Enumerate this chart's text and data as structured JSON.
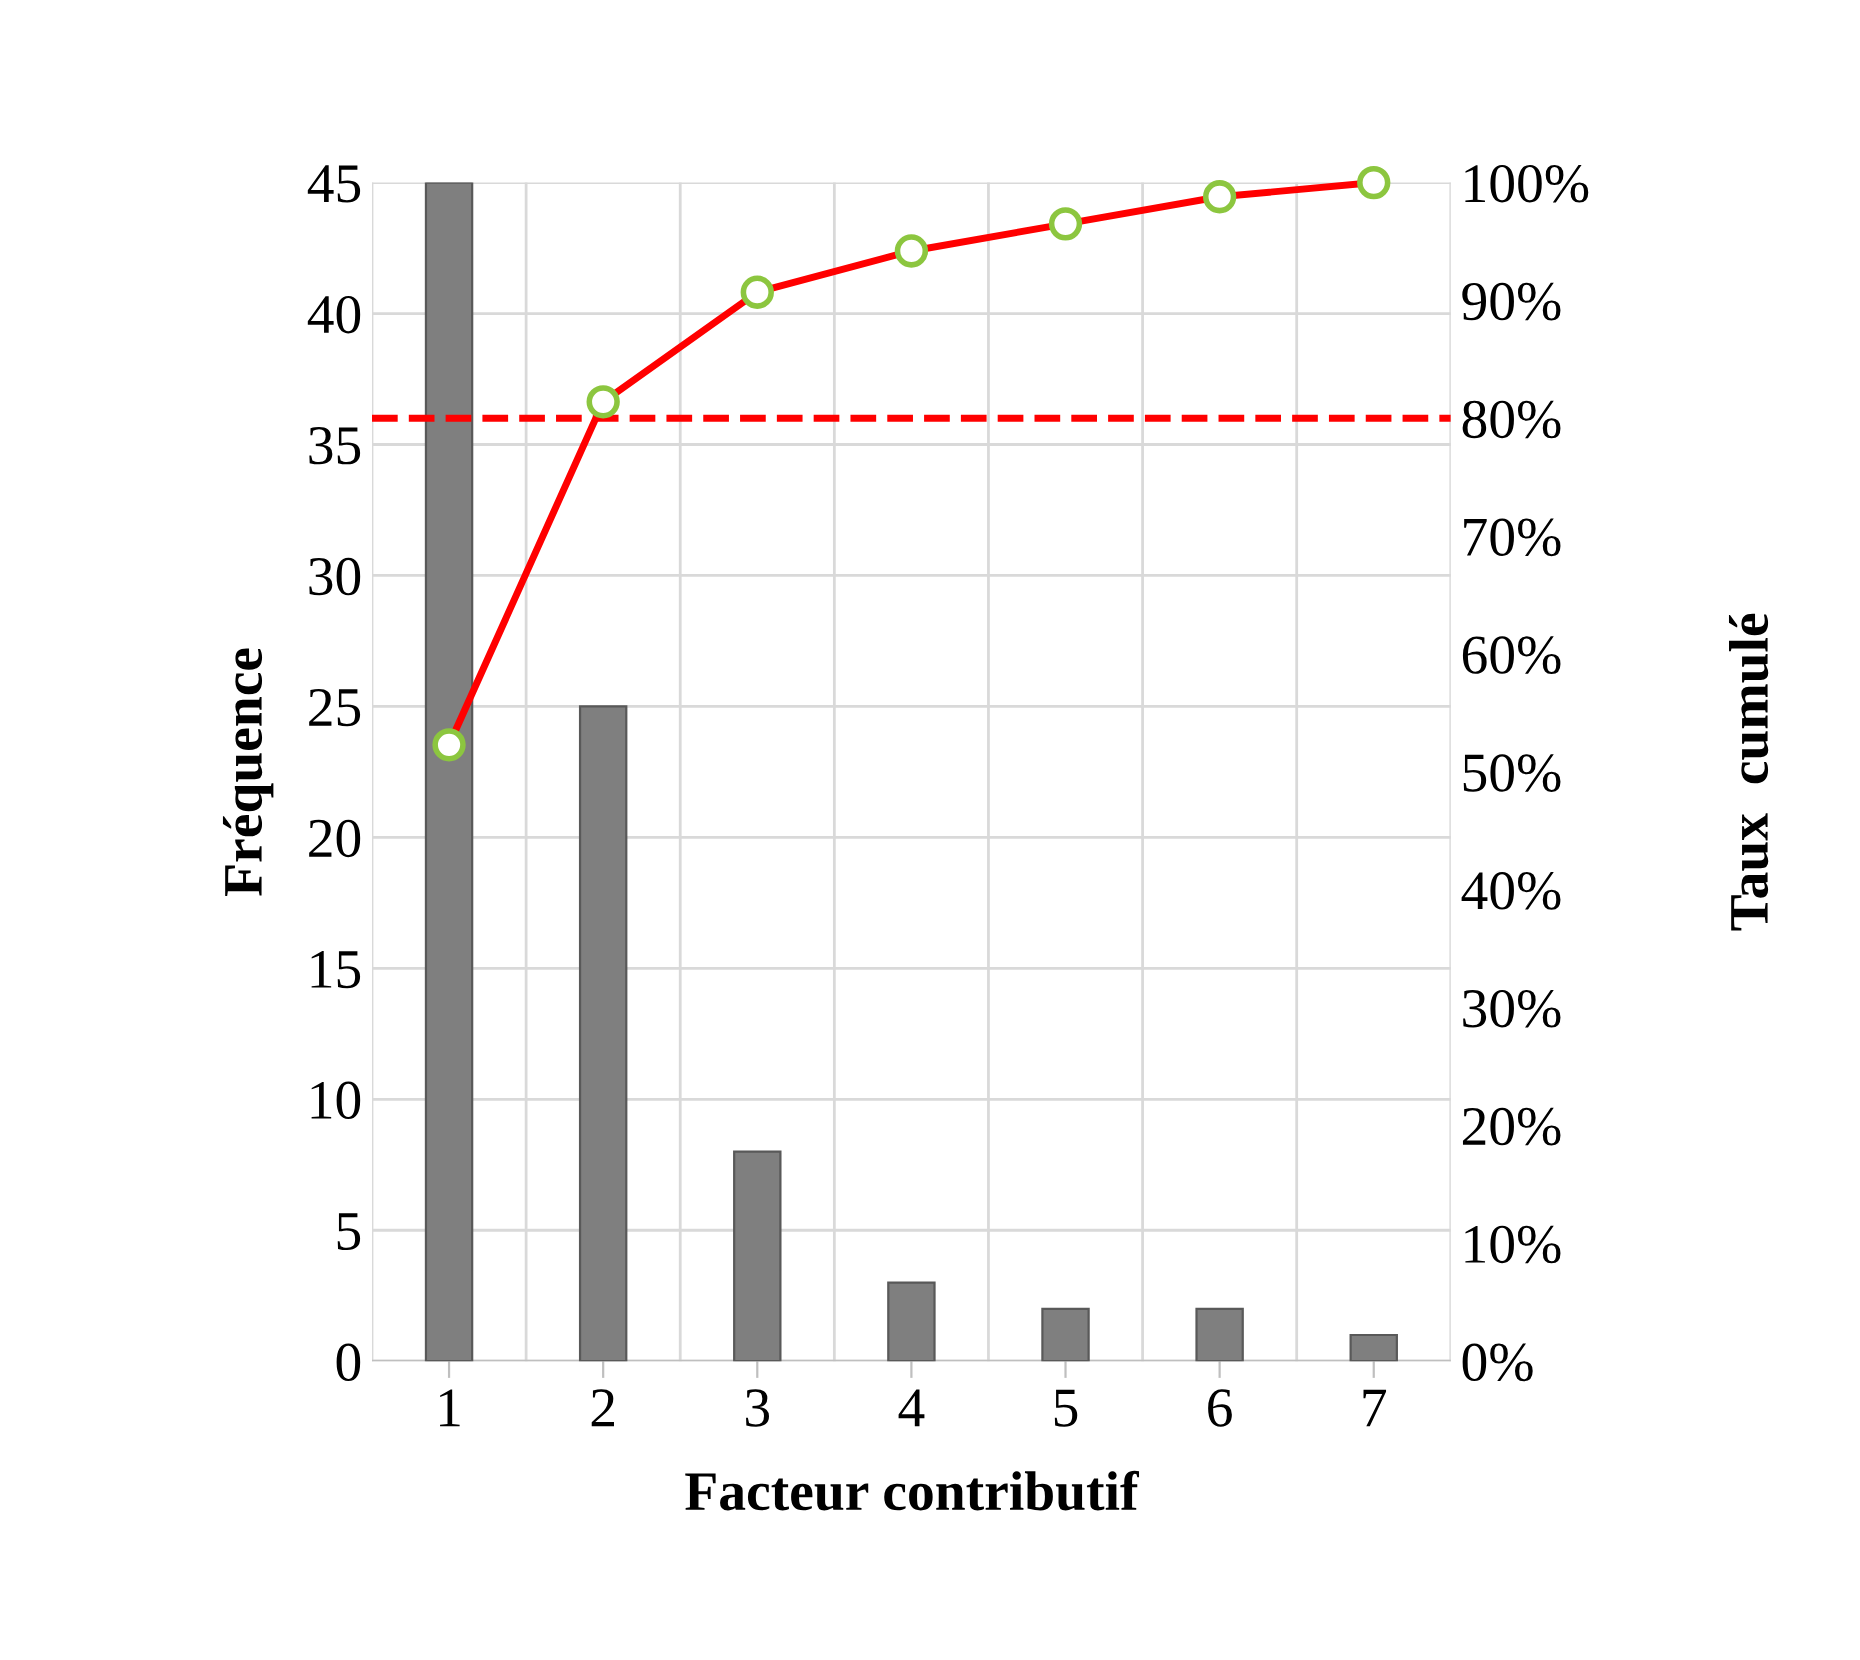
{
  "chart_data": {
    "type": "bar",
    "xlabel": "Facteur contributif",
    "ylabel": "Fréquence",
    "y2label": "Taux  cumulé",
    "categories": [
      "1",
      "2",
      "3",
      "4",
      "5",
      "6",
      "7"
    ],
    "series": [
      {
        "color": "#7f7f7f",
        "values": [
          45,
          25,
          8,
          3,
          2,
          2,
          1
        ]
      },
      {
        "type": "line",
        "axis": "y2",
        "color": "#ff0000",
        "marker": "circle",
        "line_style": "solid",
        "values": [
          52.3,
          81.4,
          90.7,
          94.2,
          96.5,
          98.8,
          100
        ]
      }
    ],
    "ylim": [
      0,
      45
    ],
    "yticks": [
      0,
      5,
      10,
      15,
      20,
      25,
      30,
      35,
      40,
      45
    ],
    "y2lim": [
      0,
      100
    ],
    "y2ticks": [
      {
        "value": 0,
        "label": "0%"
      },
      {
        "value": 10,
        "label": "10%"
      },
      {
        "value": 20,
        "label": "20%"
      },
      {
        "value": 30,
        "label": "30%"
      },
      {
        "value": 40,
        "label": "40%"
      },
      {
        "value": 50,
        "label": "50%"
      },
      {
        "value": 60,
        "label": "60%"
      },
      {
        "value": 70,
        "label": "70%"
      },
      {
        "value": 80,
        "label": "80%"
      },
      {
        "value": 90,
        "label": "90%"
      },
      {
        "value": 100,
        "label": "100%"
      }
    ],
    "ref_lines": [
      {
        "axis": "y2",
        "value": 80,
        "color": "#ff0000",
        "line_style": "dashed"
      }
    ],
    "grid": true,
    "legend": false
  }
}
